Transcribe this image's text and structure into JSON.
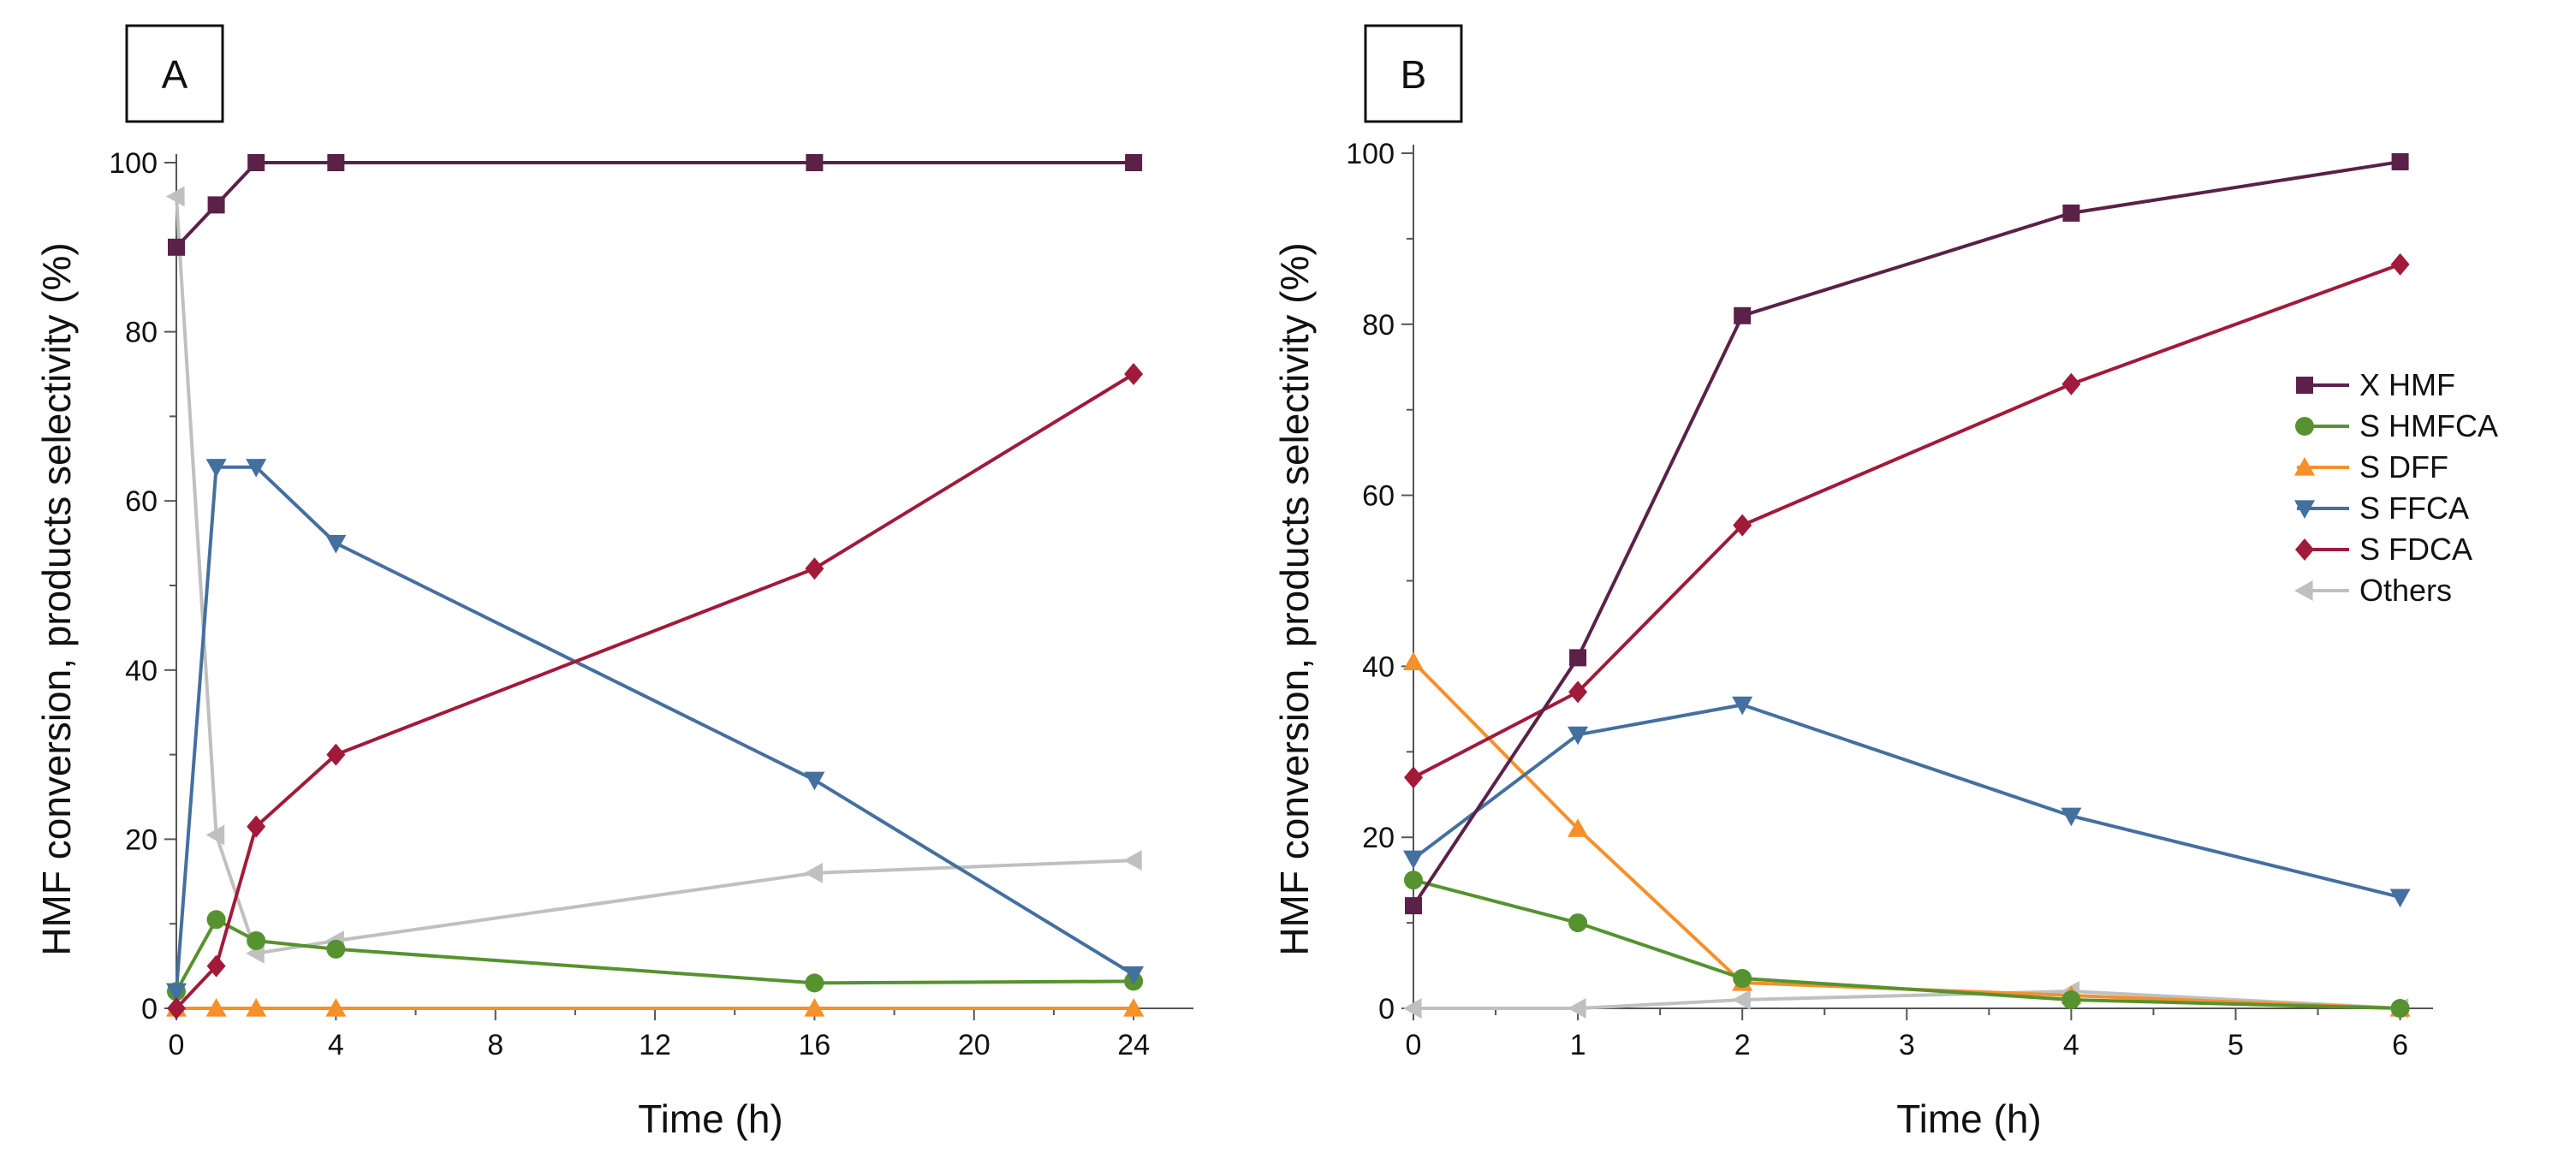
{
  "chart_data": [
    {
      "panel_label": "A",
      "type": "line",
      "xlabel": "Time (h)",
      "ylabel": "HMF conversion, products selectivity (%)",
      "xlim": [
        0,
        25.5
      ],
      "ylim": [
        0,
        100
      ],
      "xticks": [
        0,
        4,
        8,
        12,
        16,
        20,
        24
      ],
      "yticks": [
        0,
        20,
        40,
        60,
        80,
        100
      ],
      "series": [
        {
          "name": "X HMF",
          "key": "xhmf",
          "x": [
            0,
            1,
            2,
            4,
            16,
            24
          ],
          "y": [
            90,
            95,
            100,
            100,
            100,
            100
          ]
        },
        {
          "name": "S HMFCA",
          "key": "shmfca",
          "x": [
            0,
            1,
            2,
            4,
            16,
            24
          ],
          "y": [
            2,
            10.5,
            8,
            7,
            3,
            3.2
          ]
        },
        {
          "name": "S DFF",
          "key": "sdff",
          "x": [
            0,
            1,
            2,
            4,
            16,
            24
          ],
          "y": [
            0,
            0,
            0,
            0,
            0,
            0
          ]
        },
        {
          "name": "S FFCA",
          "key": "sffca",
          "x": [
            0,
            1,
            2,
            4,
            16,
            24
          ],
          "y": [
            2,
            64,
            64,
            55,
            27,
            4
          ]
        },
        {
          "name": "S FDCA",
          "key": "sfdca",
          "x": [
            0,
            1,
            2,
            4,
            16,
            24
          ],
          "y": [
            0,
            5,
            21.5,
            30,
            52,
            75
          ]
        },
        {
          "name": "Others",
          "key": "others",
          "x": [
            0,
            1,
            2,
            4,
            16,
            24
          ],
          "y": [
            96,
            20.5,
            6.5,
            8,
            16,
            17.5
          ]
        }
      ]
    },
    {
      "panel_label": "B",
      "type": "line",
      "xlabel": "Time (h)",
      "ylabel": "HMF conversion, products selectivity (%)",
      "xlim": [
        0,
        6.2
      ],
      "ylim": [
        0,
        100
      ],
      "xticks": [
        0,
        1,
        2,
        3,
        4,
        5,
        6
      ],
      "yticks": [
        0,
        20,
        40,
        60,
        80,
        100
      ],
      "series": [
        {
          "name": "X HMF",
          "key": "xhmf",
          "x": [
            0,
            1,
            2,
            4,
            6
          ],
          "y": [
            12,
            41,
            81,
            93,
            99
          ]
        },
        {
          "name": "S HMFCA",
          "key": "shmfca",
          "x": [
            0,
            1,
            2,
            4,
            6
          ],
          "y": [
            15,
            10,
            3.5,
            1,
            0
          ]
        },
        {
          "name": "S DFF",
          "key": "sdff",
          "x": [
            0,
            1,
            2,
            4,
            6
          ],
          "y": [
            40.5,
            21,
            3,
            1.5,
            0
          ]
        },
        {
          "name": "S FFCA",
          "key": "sffca",
          "x": [
            0,
            1,
            2,
            4,
            6
          ],
          "y": [
            17.5,
            32,
            35.5,
            22.5,
            13
          ]
        },
        {
          "name": "S FDCA",
          "key": "sfdca",
          "x": [
            0,
            1,
            2,
            4,
            6
          ],
          "y": [
            27,
            37,
            56.5,
            73,
            87
          ]
        },
        {
          "name": "Others",
          "key": "others",
          "x": [
            0,
            1,
            2,
            4,
            6
          ],
          "y": [
            0,
            0,
            1,
            2,
            0
          ]
        }
      ]
    }
  ],
  "legend": {
    "placement": "right-middle of panel B",
    "items": [
      {
        "key": "xhmf",
        "label": "X HMF"
      },
      {
        "key": "shmfca",
        "label": "S HMFCA"
      },
      {
        "key": "sdff",
        "label": "S DFF"
      },
      {
        "key": "sffca",
        "label": "S FFCA"
      },
      {
        "key": "sfdca",
        "label": "S FDCA"
      },
      {
        "key": "others",
        "label": "Others"
      }
    ]
  },
  "series_styles": {
    "xhmf": {
      "color": "#5b2148",
      "marker": "square"
    },
    "shmfca": {
      "color": "#56922f",
      "marker": "circle"
    },
    "sdff": {
      "color": "#f5902a",
      "marker": "triangle-up"
    },
    "sffca": {
      "color": "#44709f",
      "marker": "triangle-down"
    },
    "sfdca": {
      "color": "#a11a3a",
      "marker": "diamond"
    },
    "others": {
      "color": "#c0c0c0",
      "marker": "triangle-left"
    }
  }
}
